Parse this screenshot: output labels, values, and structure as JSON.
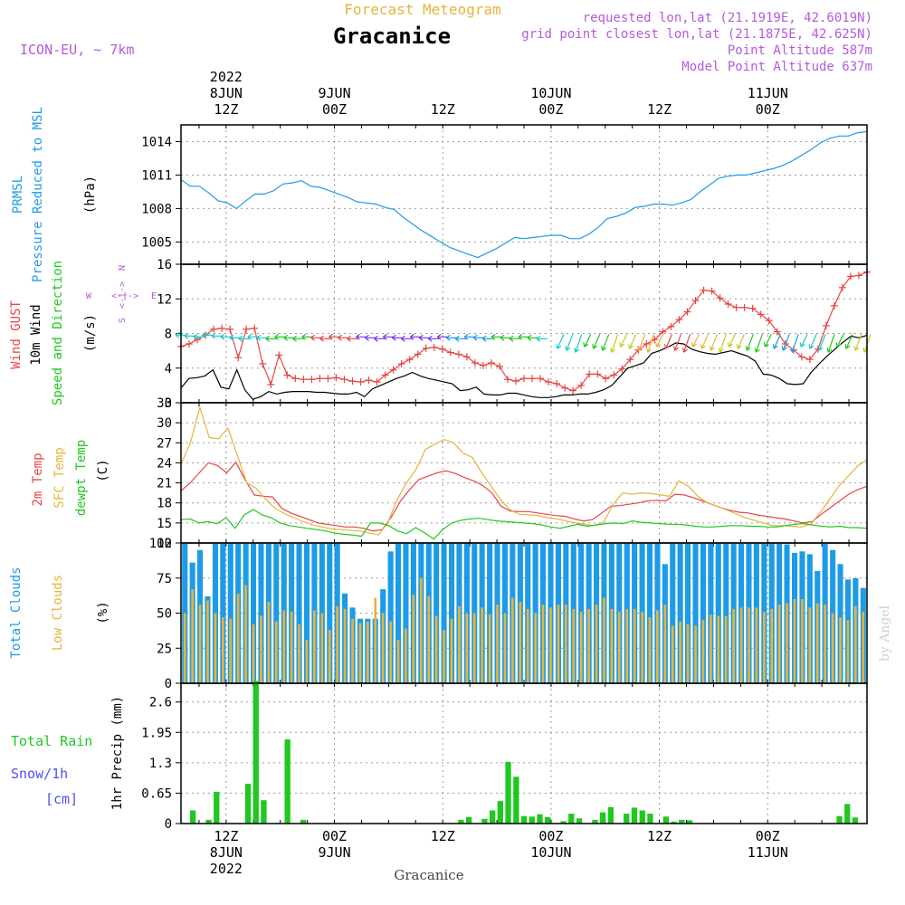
{
  "header": {
    "super_title": "Forecast Meteogram",
    "title": "Gracanice",
    "model": "ICON-EU, ~ 7km",
    "requested": "requested lon,lat (21.1919E, 42.6019N)",
    "grid_point": "grid point closest lon,lat (21.1875E, 42.625N)",
    "point_altitude": "Point Altitude 587m",
    "model_altitude": "Model Point Altitude 637m"
  },
  "time_axis": {
    "top_labels": [
      {
        "hour": 0,
        "lines": [
          "2022",
          "8JUN",
          "12Z"
        ]
      },
      {
        "hour": 12,
        "lines": [
          "9JUN",
          "00Z"
        ]
      },
      {
        "hour": 24,
        "lines": [
          "12Z"
        ]
      },
      {
        "hour": 36,
        "lines": [
          "10JUN",
          "00Z"
        ]
      },
      {
        "hour": 48,
        "lines": [
          "12Z"
        ]
      },
      {
        "hour": 60,
        "lines": [
          "11JUN",
          "00Z"
        ]
      }
    ],
    "bottom_labels": [
      {
        "hour": 0,
        "lines": [
          "12Z",
          "8JUN",
          "2022"
        ]
      },
      {
        "hour": 12,
        "lines": [
          "00Z",
          "9JUN"
        ]
      },
      {
        "hour": 24,
        "lines": [
          "12Z"
        ]
      },
      {
        "hour": 36,
        "lines": [
          "00Z",
          "10JUN"
        ]
      },
      {
        "hour": 48,
        "lines": [
          "12Z"
        ]
      },
      {
        "hour": 60,
        "lines": [
          "00Z",
          "11JUN"
        ]
      }
    ],
    "footer": "Gracanice",
    "watermark": "by Angel"
  },
  "colors": {
    "blue": "#1e9be6",
    "red": "#e64646",
    "orange": "#e6b43c",
    "green": "#1ec81e",
    "purple": "#b45adc",
    "snow": "#5050f0"
  },
  "chart_data": [
    {
      "type": "line",
      "title": "PRMSL Pressure Reduced to MSL",
      "ylabel": "(hPa)",
      "ylim": [
        1003,
        1015.5
      ],
      "yticks": [
        1005,
        1008,
        1011,
        1014
      ],
      "x_hours_from_8JUN_12Z": [
        -5,
        -4,
        -3,
        -2,
        -1,
        0,
        1,
        2,
        3,
        4,
        5,
        6,
        7,
        8,
        9,
        10,
        11,
        12,
        13,
        14,
        15,
        16,
        17,
        18,
        19,
        20,
        21,
        22,
        23,
        24,
        25,
        26,
        27,
        28,
        29,
        30,
        31,
        32,
        33,
        34,
        35,
        36,
        37,
        38,
        39,
        40,
        41,
        42,
        43,
        44,
        45,
        46,
        47,
        48,
        49,
        50,
        51,
        52,
        53,
        54,
        55,
        56,
        57,
        58,
        59,
        60,
        61,
        62,
        63,
        64,
        65,
        66,
        67,
        68,
        69,
        70,
        71
      ],
      "series": [
        {
          "name": "PRMSL",
          "color": "#1e9be6",
          "values": [
            1010.6,
            1010.0,
            1010.0,
            1009.4,
            1008.7,
            1008.5,
            1008.0,
            1008.7,
            1009.3,
            1009.3,
            1009.6,
            1010.2,
            1010.3,
            1010.5,
            1010.0,
            1009.9,
            1009.6,
            1009.3,
            1009.0,
            1008.6,
            1008.5,
            1008.4,
            1008.1,
            1007.9,
            1007.2,
            1006.6,
            1006.0,
            1005.5,
            1005.0,
            1004.5,
            1004.2,
            1003.9,
            1003.6,
            1004.0,
            1004.4,
            1004.9,
            1005.4,
            1005.3,
            1005.4,
            1005.5,
            1005.6,
            1005.6,
            1005.3,
            1005.3,
            1005.7,
            1006.3,
            1007.1,
            1007.3,
            1007.6,
            1008.1,
            1008.2,
            1008.4,
            1008.4,
            1008.3,
            1008.5,
            1008.8,
            1009.5,
            1010.1,
            1010.7,
            1010.9,
            1011.0,
            1011.0,
            1011.2,
            1011.4,
            1011.6,
            1011.9,
            1012.3,
            1012.8,
            1013.3,
            1013.9,
            1014.3,
            1014.5,
            1014.5,
            1014.8,
            1014.9
          ]
        }
      ]
    },
    {
      "type": "line",
      "title": "Wind GUST / 10m Wind / Speed and Direction",
      "ylabel": "(m/s)",
      "ylim": [
        0,
        16
      ],
      "yticks": [
        0,
        4,
        8,
        12,
        16
      ],
      "compass_labels": {
        "n": "N",
        "s": "S",
        "w": "W",
        "e": "E",
        "arrow": "<-|->"
      },
      "series": [
        {
          "name": "Wind GUST",
          "color": "#e64646",
          "values": [
            6.5,
            6.8,
            7.3,
            7.8,
            8.5,
            8.6,
            8.5,
            5.2,
            8.5,
            8.6,
            4.5,
            2.1,
            5.5,
            3.2,
            2.8,
            2.7,
            2.7,
            2.8,
            2.8,
            2.9,
            2.7,
            2.5,
            2.4,
            2.6,
            2.4,
            3.2,
            3.8,
            4.5,
            5.0,
            5.6,
            6.3,
            6.4,
            6.2,
            5.8,
            5.6,
            5.3,
            4.6,
            4.3,
            4.6,
            4.2,
            2.7,
            2.5,
            2.8,
            2.8,
            2.8,
            2.4,
            2.2,
            1.7,
            1.4,
            2.0,
            3.3,
            3.3,
            2.8,
            3.2,
            3.9,
            5.0,
            6.1,
            6.8,
            7.3,
            8.2,
            8.8,
            9.6,
            10.5,
            11.8,
            13.0,
            12.9,
            12.1,
            11.4,
            11.0,
            11.0,
            10.9,
            10.2,
            9.5,
            8.2,
            6.8,
            6.1,
            5.3,
            5.0,
            6.2,
            8.9,
            11.2,
            13.3,
            14.6,
            14.7,
            15.1
          ]
        },
        {
          "name": "10m Wind",
          "color": "#000000",
          "values": [
            1.7,
            2.8,
            2.9,
            3.1,
            3.8,
            1.8,
            1.6,
            3.8,
            1.5,
            0.4,
            0.7,
            1.3,
            1.0,
            1.2,
            1.3,
            1.3,
            1.3,
            1.2,
            1.2,
            1.1,
            1.0,
            1.0,
            1.2,
            0.7,
            1.6,
            2.0,
            2.4,
            2.8,
            3.1,
            3.5,
            3.1,
            2.8,
            2.6,
            2.4,
            2.2,
            1.4,
            1.5,
            1.8,
            1.0,
            0.9,
            0.9,
            1.1,
            1.1,
            0.9,
            0.7,
            0.6,
            0.6,
            0.7,
            0.9,
            0.9,
            1.0,
            1.0,
            1.2,
            1.5,
            2.0,
            3.0,
            4.0,
            4.3,
            4.6,
            5.7,
            6.0,
            6.4,
            6.9,
            6.8,
            6.2,
            5.9,
            5.7,
            5.6,
            5.8,
            6.0,
            5.7,
            5.4,
            4.8,
            3.3,
            3.2,
            2.8,
            2.2,
            2.1,
            2.2,
            3.5,
            4.5,
            5.4,
            6.2,
            7.0,
            7.7,
            7.5,
            7.8
          ]
        }
      ]
    },
    {
      "type": "line",
      "title": "2m Temp / SFC Temp / dewpt Temp",
      "ylabel": "(C)",
      "ylim": [
        12,
        33
      ],
      "yticks": [
        12,
        15,
        18,
        21,
        24,
        27,
        30,
        33
      ],
      "series": [
        {
          "name": "2m Temp",
          "color": "#e64646",
          "values": [
            19.8,
            21.0,
            22.5,
            24.0,
            23.6,
            22.5,
            24.1,
            21.5,
            19.2,
            19.0,
            18.9,
            17.2,
            16.5,
            16.0,
            15.5,
            15.0,
            14.8,
            14.6,
            14.4,
            14.4,
            14.2,
            13.8,
            14.0,
            15.9,
            18.3,
            20.0,
            21.5,
            22.0,
            22.5,
            22.8,
            22.4,
            21.8,
            21.3,
            20.6,
            19.5,
            17.5,
            16.8,
            16.7,
            16.7,
            16.5,
            16.3,
            16.1,
            16.0,
            15.6,
            15.3,
            15.5,
            16.5,
            17.5,
            17.6,
            17.8,
            18.0,
            18.3,
            18.4,
            18.3,
            19.3,
            19.2,
            18.8,
            18.3,
            17.8,
            17.3,
            16.9,
            16.6,
            16.5,
            16.2,
            16.0,
            15.8,
            15.6,
            15.3,
            15.0,
            15.2,
            16.3,
            17.3,
            18.3,
            19.3,
            20.0,
            20.5
          ]
        },
        {
          "name": "SFC Temp",
          "color": "#e6b43c",
          "values": [
            23.8,
            27.0,
            32.3,
            27.8,
            27.6,
            29.2,
            25.1,
            21.0,
            20.2,
            18.6,
            17.2,
            16.4,
            15.8,
            15.2,
            14.7,
            14.4,
            14.1,
            14.0,
            13.9,
            13.8,
            13.5,
            13.2,
            15.0,
            18.5,
            21.0,
            23.0,
            26.0,
            26.8,
            27.5,
            27.0,
            25.5,
            24.8,
            22.5,
            20.5,
            18.5,
            17.0,
            16.3,
            16.2,
            16.1,
            15.8,
            15.6,
            15.3,
            15.0,
            14.8,
            14.6,
            15.2,
            17.8,
            19.5,
            19.3,
            19.5,
            19.4,
            19.2,
            19.0,
            21.3,
            20.5,
            19.0,
            18.0,
            17.5,
            17.0,
            16.4,
            15.8,
            15.4,
            15.0,
            14.6,
            14.6,
            14.5,
            14.4,
            14.8,
            16.5,
            18.5,
            20.5,
            22.0,
            23.5,
            24.5
          ]
        },
        {
          "name": "dewpt Temp",
          "color": "#1ec81e",
          "values": [
            15.5,
            15.6,
            15.0,
            15.2,
            14.9,
            15.8,
            14.2,
            16.2,
            17.0,
            16.2,
            15.8,
            15.0,
            14.6,
            14.4,
            14.2,
            14.0,
            13.8,
            13.5,
            13.3,
            13.2,
            13.0,
            15.0,
            15.0,
            14.6,
            13.8,
            13.4,
            14.3,
            13.5,
            12.6,
            14.0,
            15.0,
            15.4,
            15.6,
            15.7,
            15.5,
            15.3,
            15.2,
            15.1,
            15.0,
            14.9,
            14.7,
            14.4,
            14.2,
            14.5,
            14.8,
            14.5,
            14.7,
            14.9,
            15.0,
            14.9,
            15.3,
            15.1,
            15.0,
            14.9,
            14.8,
            14.8,
            14.7,
            14.5,
            14.4,
            14.4,
            14.5,
            14.6,
            14.6,
            14.5,
            14.5,
            14.4,
            14.4,
            14.6,
            14.8,
            14.9,
            14.7,
            14.5,
            14.4,
            14.5,
            14.3,
            14.3,
            14.2
          ]
        }
      ]
    },
    {
      "type": "bar",
      "title": "Total Clouds / Low Clouds",
      "ylabel": "(%)",
      "ylim": [
        0,
        100
      ],
      "yticks": [
        0,
        25,
        50,
        75,
        100
      ],
      "series": [
        {
          "name": "Total Clouds",
          "color": "#1e9be6",
          "values": [
            100,
            86,
            95,
            62,
            100,
            100,
            100,
            100,
            100,
            100,
            100,
            100,
            100,
            100,
            100,
            100,
            100,
            100,
            100,
            100,
            100,
            64,
            54,
            46,
            46,
            46,
            67,
            94,
            100,
            100,
            100,
            100,
            100,
            100,
            100,
            100,
            100,
            100,
            100,
            100,
            100,
            100,
            100,
            100,
            100,
            100,
            100,
            100,
            100,
            100,
            100,
            100,
            100,
            100,
            100,
            100,
            100,
            100,
            100,
            100,
            100,
            100,
            100,
            85,
            100,
            100,
            100,
            100,
            100,
            100,
            100,
            100,
            100,
            100,
            100,
            100,
            100,
            100,
            100,
            99,
            93,
            94,
            92,
            80,
            100,
            95,
            85,
            74,
            75,
            68
          ]
        },
        {
          "name": "Low Clouds",
          "color": "#e6b43c",
          "values": [
            50,
            67,
            56,
            59,
            50,
            47,
            46,
            64,
            70,
            42,
            48,
            58,
            44,
            52,
            51,
            42,
            31,
            52,
            50,
            38,
            55,
            53,
            46,
            43,
            44,
            61,
            50,
            44,
            31,
            39,
            63,
            75,
            62,
            48,
            38,
            46,
            55,
            50,
            50,
            54,
            49,
            56,
            50,
            61,
            58,
            53,
            50,
            56,
            54,
            56,
            56,
            53,
            51,
            53,
            56,
            61,
            53,
            51,
            53,
            53,
            51,
            47,
            52,
            56,
            41,
            44,
            42,
            41,
            45,
            49,
            48,
            48,
            53,
            54,
            54,
            54,
            51,
            53,
            56,
            57,
            60,
            60,
            54,
            57,
            56,
            50,
            47,
            45,
            55,
            51
          ]
        }
      ]
    },
    {
      "type": "bar",
      "title": "Total Rain / Snow/1h [cm] / 1hr Precip (mm)",
      "ylabel": "1hr Precip (mm)",
      "ylim": [
        0,
        3.0
      ],
      "yticks": [
        0,
        0.65,
        1.3,
        1.95,
        2.6
      ],
      "ytick_labels": [
        "0",
        "0.65",
        "1.3",
        "1.95",
        "2.6"
      ],
      "legend": {
        "total_rain": "Total Rain",
        "snow": "Snow/1h",
        "snow_unit": "[cm]"
      },
      "series": [
        {
          "name": "1hr Precip",
          "color": "#1ec81e",
          "values": [
            0,
            0.28,
            0,
            0.08,
            0.68,
            0,
            0,
            0,
            0.85,
            3.05,
            0.5,
            0,
            0,
            1.8,
            0,
            0.08,
            0,
            0,
            0,
            0,
            0,
            0,
            0,
            0,
            0,
            0,
            0,
            0,
            0,
            0,
            0,
            0,
            0,
            0,
            0,
            0.08,
            0.14,
            0,
            0.1,
            0.28,
            0.48,
            1.32,
            1.0,
            0.16,
            0.15,
            0.2,
            0.14,
            0,
            0.05,
            0.21,
            0.11,
            0,
            0.08,
            0.24,
            0.35,
            0.01,
            0.21,
            0.34,
            0.28,
            0.21,
            0,
            0.15,
            0.04,
            0.08,
            0.07,
            0,
            0,
            0,
            0,
            0,
            0,
            0,
            0,
            0,
            0,
            0,
            0,
            0,
            0,
            0,
            0,
            0,
            0,
            0.16,
            0.42,
            0.13,
            0
          ]
        }
      ]
    }
  ]
}
